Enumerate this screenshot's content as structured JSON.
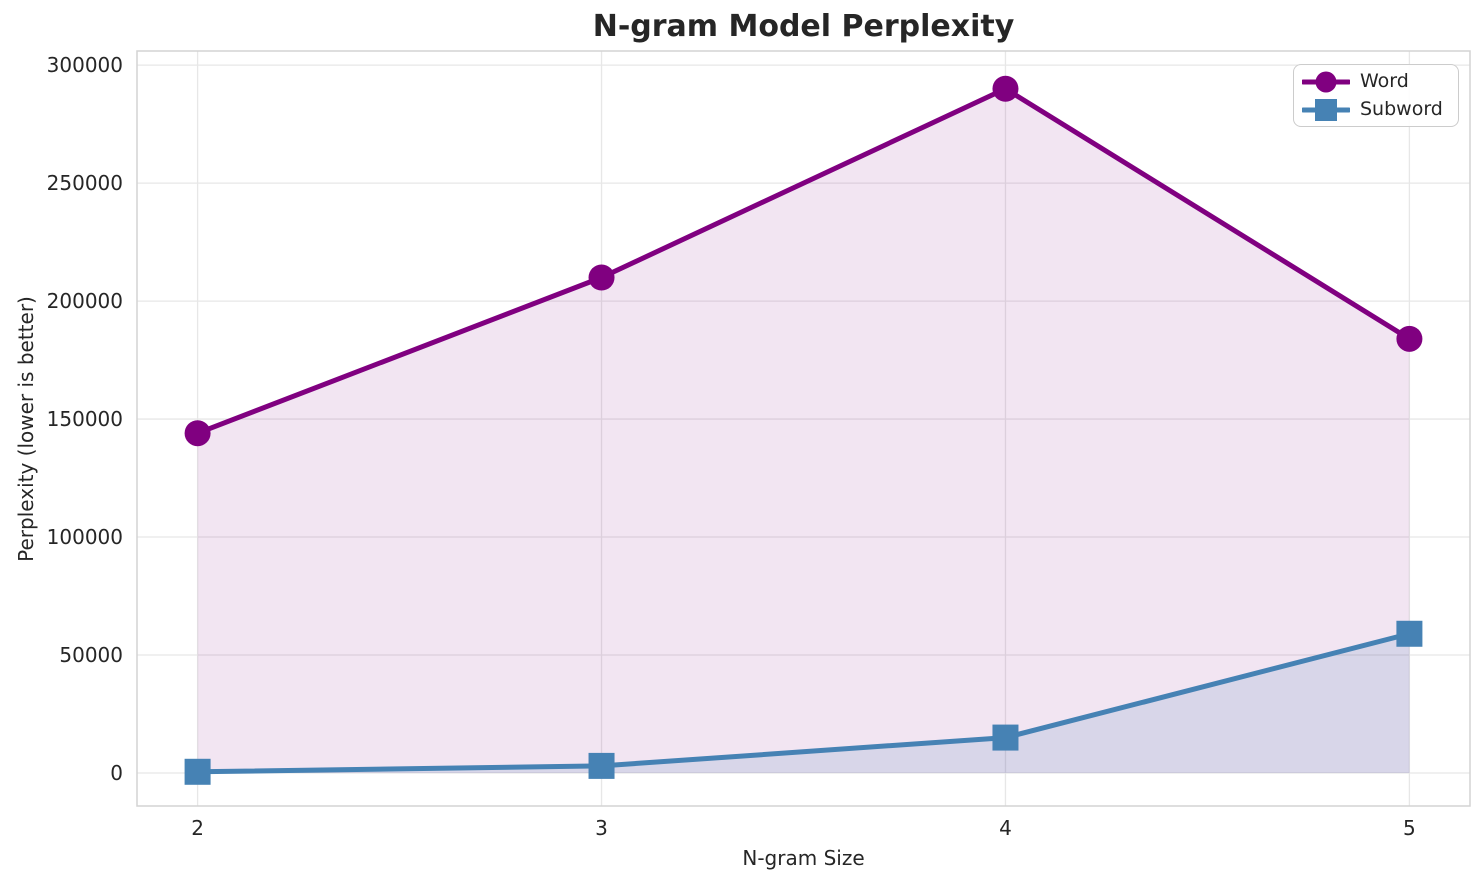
{
  "chart_data": {
    "type": "line",
    "title": "N-gram Model Perplexity",
    "xlabel": "N-gram Size",
    "ylabel": "Perplexity (lower is better)",
    "x": [
      2,
      3,
      4,
      5
    ],
    "series": [
      {
        "name": "Word",
        "marker": "circle",
        "color": "#800080",
        "fill_alpha": 0.1,
        "values": [
          144000,
          210000,
          290000,
          184000
        ]
      },
      {
        "name": "Subword",
        "marker": "square",
        "color": "#4682b4",
        "fill_alpha": 0.15,
        "values": [
          500,
          3000,
          15000,
          59000
        ]
      }
    ],
    "xticks": [
      2,
      3,
      4,
      5
    ],
    "yticks": [
      0,
      50000,
      100000,
      150000,
      200000,
      250000,
      300000
    ],
    "xlim": [
      1.85,
      5.15
    ],
    "ylim": [
      -14000,
      306000
    ],
    "grid": true,
    "area_fill": true,
    "legend_position": "upper right"
  },
  "colors": {
    "grid": "#e7e7e7",
    "spine": "#d3d3d3",
    "text": "#262626",
    "legend_border": "#cccccc",
    "background": "#ffffff"
  }
}
